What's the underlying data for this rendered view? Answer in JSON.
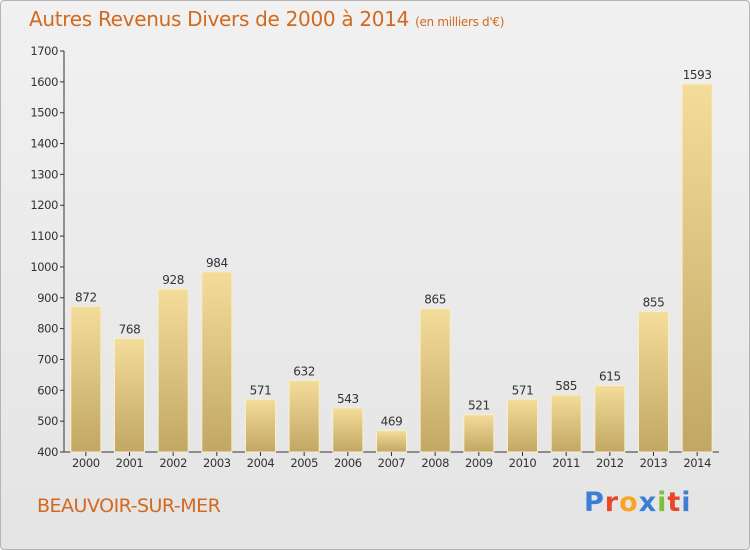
{
  "header": {
    "title": "Autres Revenus Divers de 2000 à 2014",
    "subtitle": "(en milliers d'€)"
  },
  "footer": {
    "commune": "BEAUVOIR-SUR-MER",
    "logo_text": "Proxiti"
  },
  "colors": {
    "title": "#d2691e",
    "bar_light": "#f4dc9a",
    "bar_dark": "#c2a764",
    "logo_letters": [
      "#3a7fd5",
      "#e8462b",
      "#f5a623",
      "#3a7fd5",
      "#7cbf3a",
      "#e8462b",
      "#3a7fd5"
    ]
  },
  "chart_data": {
    "type": "bar",
    "title": "Autres Revenus Divers de 2000 à 2014",
    "subtitle": "(en milliers d'€)",
    "categories": [
      "2000",
      "2001",
      "2002",
      "2003",
      "2004",
      "2005",
      "2006",
      "2007",
      "2008",
      "2009",
      "2010",
      "2011",
      "2012",
      "2013",
      "2014"
    ],
    "values": [
      872,
      768,
      928,
      984,
      571,
      632,
      543,
      469,
      865,
      521,
      571,
      585,
      615,
      855,
      1593
    ],
    "ylim": [
      400,
      1700
    ],
    "yticks": [
      400,
      500,
      600,
      700,
      800,
      900,
      1000,
      1100,
      1200,
      1300,
      1400,
      1500,
      1600,
      1700
    ],
    "grid": false,
    "data_labels": true,
    "legend": "none"
  }
}
